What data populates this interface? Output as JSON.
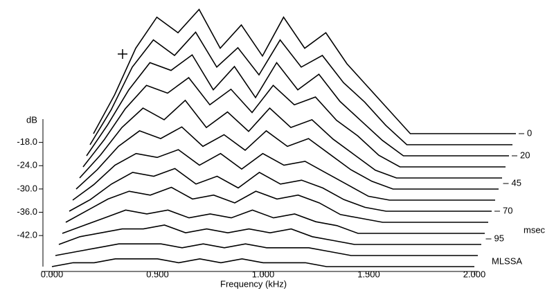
{
  "chart_data": {
    "type": "waterfall",
    "x_label": "Frequency (kHz)",
    "y_label": "dB",
    "z_label": "msec",
    "annotation": "MLSSA",
    "color": "#000000",
    "x": [
      0.0,
      0.1,
      0.2,
      0.3,
      0.4,
      0.5,
      0.6,
      0.7,
      0.8,
      0.9,
      1.0,
      1.1,
      1.2,
      1.3,
      1.4,
      1.5,
      1.6,
      1.7,
      1.8,
      1.9,
      2.0
    ],
    "z": [
      0,
      10,
      20,
      30,
      40,
      50,
      60,
      70,
      80,
      90,
      100,
      110,
      120
    ],
    "series": [
      {
        "values": [
          -50,
          -40,
          -28,
          -20,
          -24,
          -18,
          -28,
          -22,
          -30,
          -20,
          -28,
          -24,
          -32,
          -38,
          -44,
          -50,
          -50,
          -50,
          -50,
          -50,
          -50
        ]
      },
      {
        "values": [
          -50,
          -41,
          -30,
          -23,
          -27,
          -21,
          -30,
          -25,
          -32,
          -23,
          -30,
          -27,
          -34,
          -39,
          -45,
          -50,
          -50,
          -50,
          -50,
          -50,
          -50
        ]
      },
      {
        "values": [
          -50,
          -42,
          -33,
          -26,
          -28,
          -24,
          -33,
          -27,
          -35,
          -26,
          -33,
          -29,
          -36,
          -41,
          -46,
          -50,
          -50,
          -50,
          -50,
          -50,
          -50
        ]
      },
      {
        "values": [
          -50,
          -43,
          -35,
          -29,
          -31,
          -27,
          -34,
          -30,
          -36,
          -29,
          -34,
          -32,
          -38,
          -42,
          -47,
          -50,
          -50,
          -50,
          -50,
          -50,
          -50
        ]
      },
      {
        "values": [
          -50,
          -44,
          -37,
          -32,
          -35,
          -30,
          -37,
          -33,
          -38,
          -32,
          -37,
          -35,
          -40,
          -44,
          -48,
          -50,
          -50,
          -50,
          -50,
          -50,
          -50
        ]
      },
      {
        "values": [
          -50,
          -45,
          -39,
          -35,
          -37,
          -34,
          -39,
          -36,
          -40,
          -35,
          -39,
          -37,
          -41,
          -45,
          -48,
          -50,
          -50,
          -50,
          -50,
          -50,
          -50
        ]
      },
      {
        "values": [
          -50,
          -46,
          -41,
          -38,
          -39,
          -37,
          -41,
          -38,
          -42,
          -38,
          -41,
          -40,
          -43,
          -46,
          -49,
          -50,
          -50,
          -50,
          -50,
          -50,
          -50
        ]
      },
      {
        "values": [
          -50,
          -47,
          -43,
          -40,
          -41,
          -39,
          -43,
          -41,
          -44,
          -40,
          -43,
          -42,
          -44,
          -47,
          -49,
          -50,
          -50,
          -50,
          -50,
          -50,
          -50
        ]
      },
      {
        "values": [
          -50,
          -47,
          -44,
          -42,
          -43,
          -41,
          -44,
          -43,
          -45,
          -42,
          -44,
          -43,
          -45,
          -48,
          -49,
          -50,
          -50,
          -50,
          -50,
          -50,
          -50
        ]
      },
      {
        "values": [
          -50,
          -48,
          -46,
          -44,
          -45,
          -44,
          -46,
          -45,
          -46,
          -44,
          -46,
          -45,
          -47,
          -48,
          -50,
          -50,
          -50,
          -50,
          -50,
          -50,
          -50
        ]
      },
      {
        "values": [
          -50,
          -48,
          -47,
          -46,
          -46,
          -45,
          -47,
          -46,
          -47,
          -46,
          -47,
          -46,
          -48,
          -49,
          -50,
          -50,
          -50,
          -50,
          -50,
          -50,
          -50
        ]
      },
      {
        "values": [
          -50,
          -49,
          -48,
          -47,
          -47,
          -47,
          -48,
          -47,
          -48,
          -47,
          -48,
          -48,
          -48,
          -49,
          -50,
          -50,
          -50,
          -50,
          -50,
          -50,
          -50
        ]
      },
      {
        "values": [
          -50,
          -49,
          -49,
          -48,
          -48,
          -48,
          -49,
          -48,
          -49,
          -48,
          -49,
          -49,
          -49,
          -50,
          -50,
          -50,
          -50,
          -50,
          -50,
          -50,
          -50
        ]
      }
    ],
    "xlim": [
      0,
      2
    ],
    "xticks": [
      {
        "value": 0,
        "label": "0.000"
      },
      {
        "value": 0.5,
        "label": "0.500"
      },
      {
        "value": 1,
        "label": "1.000"
      },
      {
        "value": 1.5,
        "label": "1.500"
      },
      {
        "value": 2,
        "label": "2.000"
      }
    ],
    "ylim": [
      -50,
      -12
    ],
    "yticks": [
      {
        "value": -18,
        "label": "-18.0"
      },
      {
        "value": -24,
        "label": "-24.0"
      },
      {
        "value": -30,
        "label": "-30.0"
      },
      {
        "value": -36,
        "label": "-36.0"
      },
      {
        "value": -42,
        "label": "-42.0"
      }
    ],
    "zlim": [
      0,
      120
    ],
    "zticks": [
      0,
      20,
      45,
      70,
      95
    ]
  }
}
